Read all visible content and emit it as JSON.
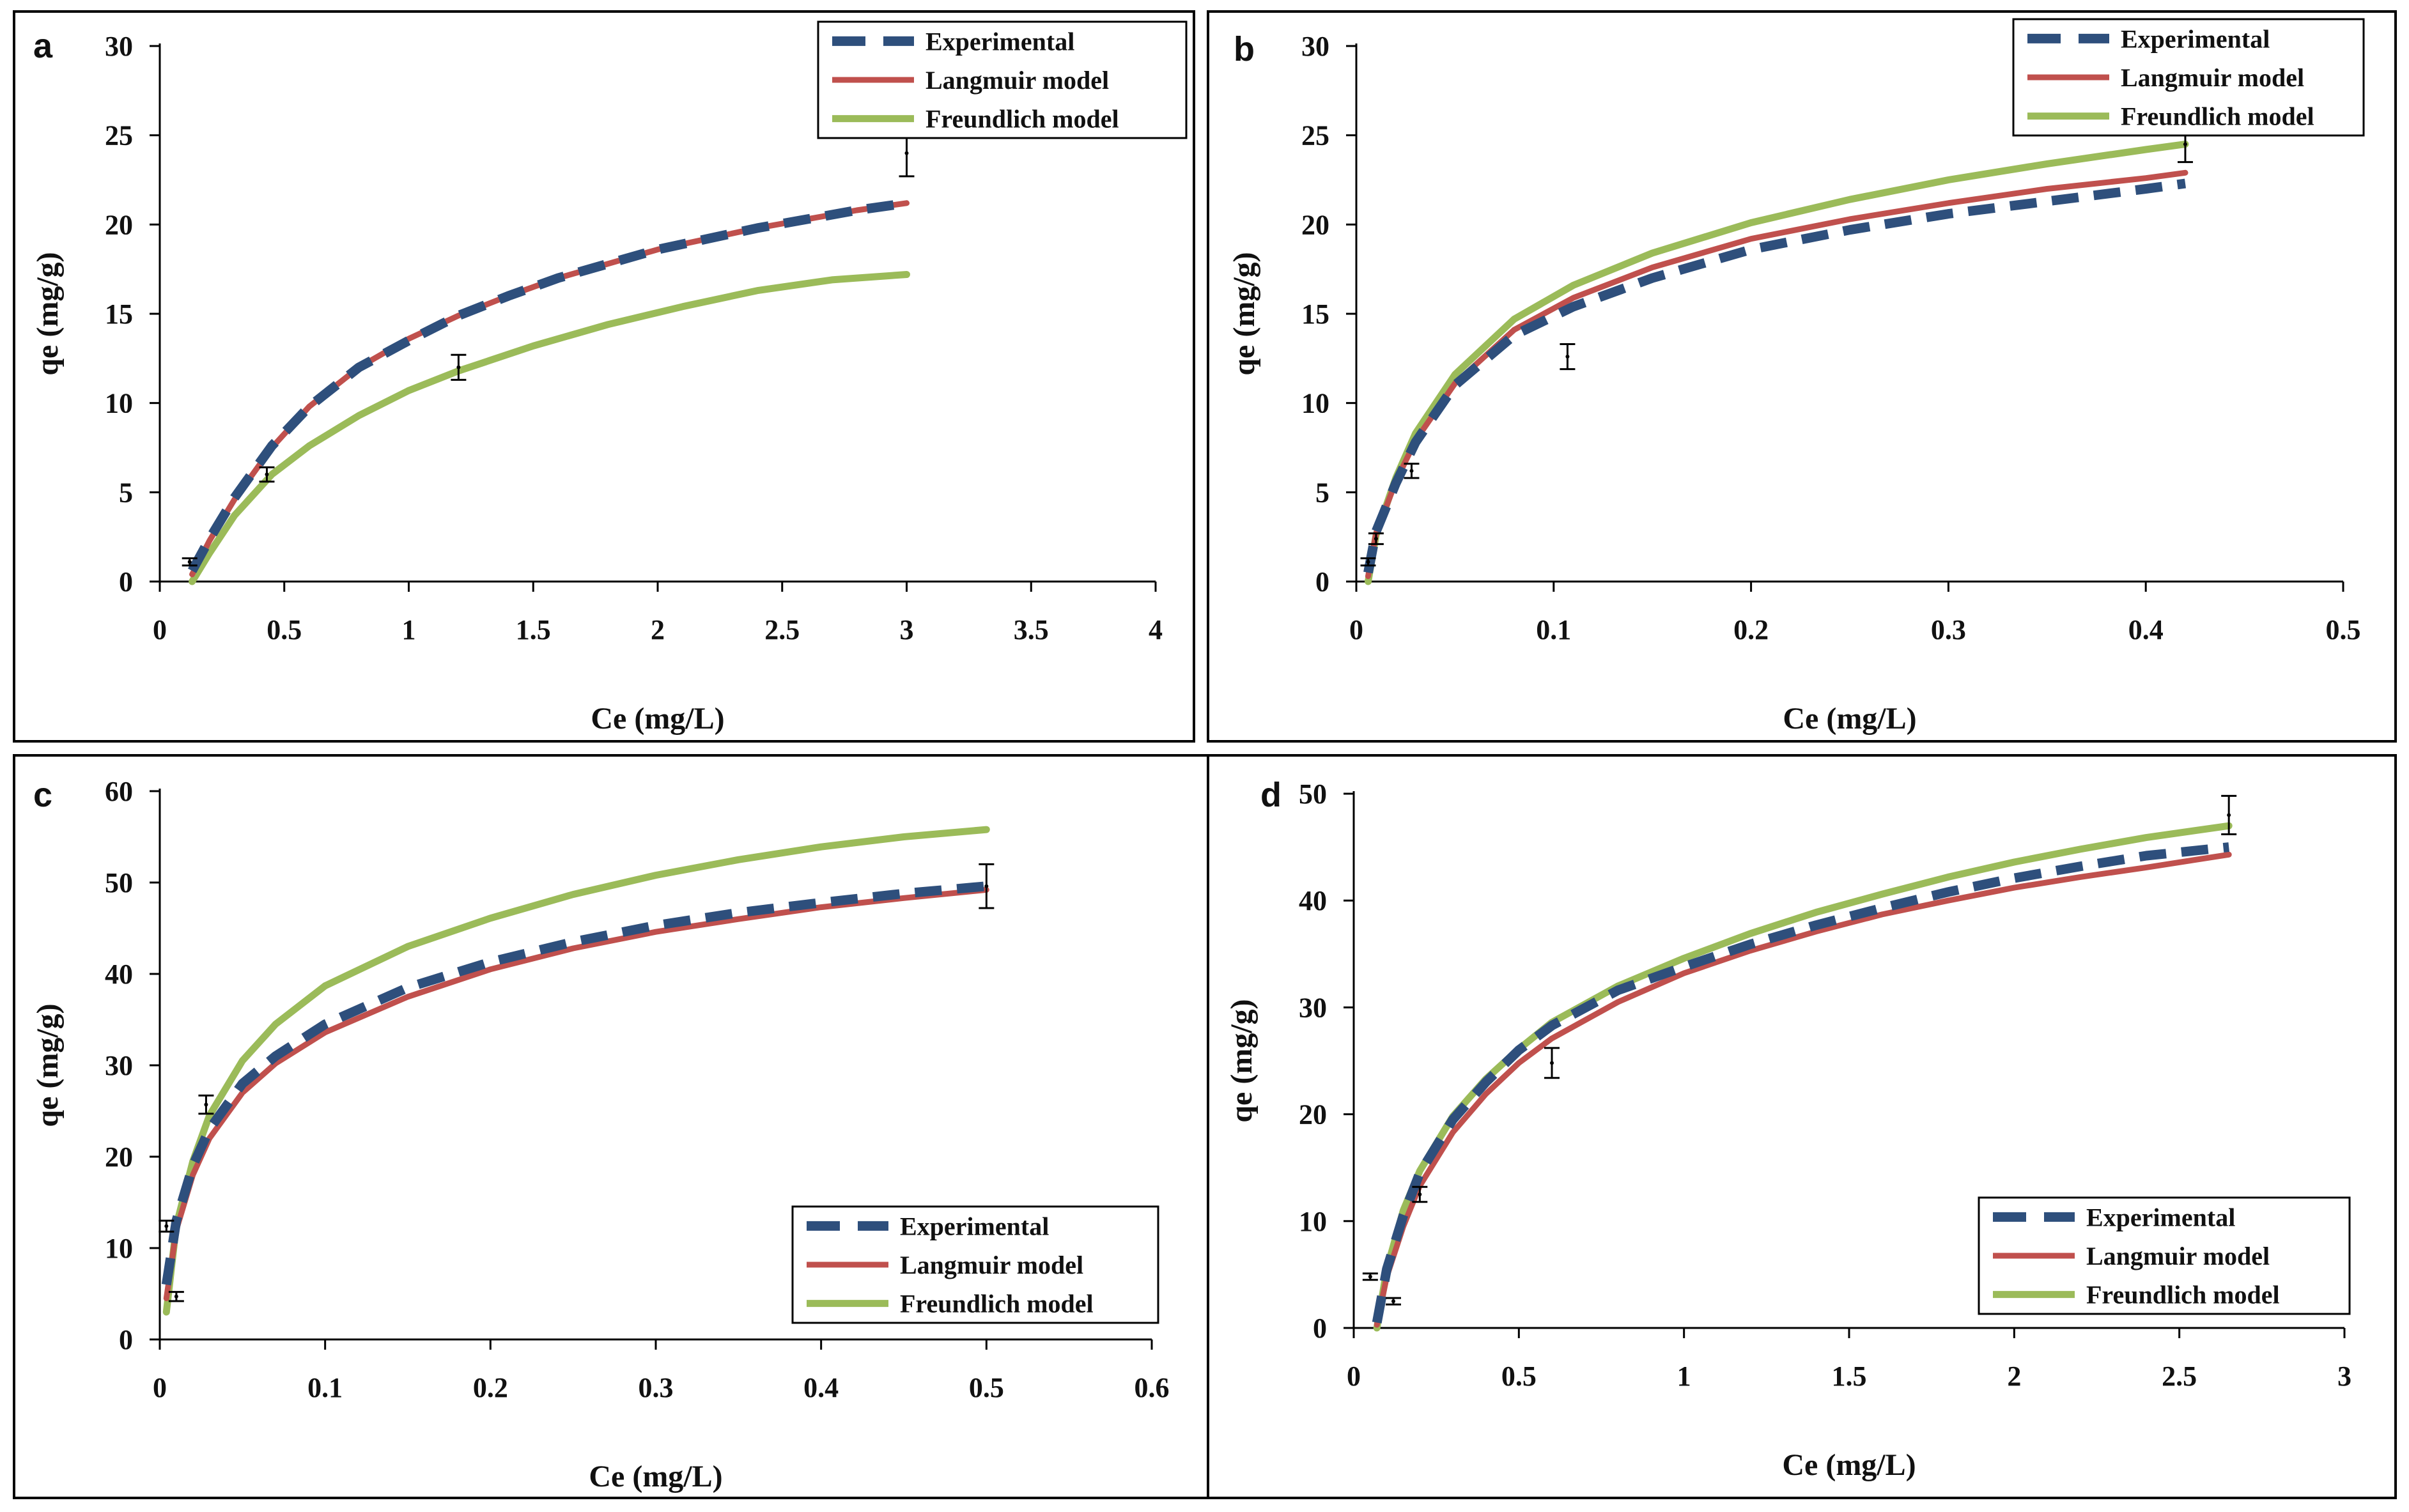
{
  "chart_data": [
    {
      "type": "line",
      "panel": "a",
      "xlabel": "Ce (mg/L)",
      "ylabel": "qe (mg/g)",
      "xlim": [
        0,
        4
      ],
      "ylim": [
        0,
        30
      ],
      "xticks": [
        "0",
        "0.5",
        "1",
        "1.5",
        "2",
        "2.5",
        "3",
        "3.5",
        "4"
      ],
      "yticks": [
        "0",
        "5",
        "10",
        "15",
        "20",
        "25",
        "30"
      ],
      "legend_position": "top-right",
      "series": [
        {
          "name": "Experimental",
          "style": "dashed",
          "x": [
            0.13,
            0.2,
            0.3,
            0.45,
            0.6,
            0.8,
            1.0,
            1.2,
            1.4,
            1.6,
            1.8,
            2.0,
            2.2,
            2.4,
            2.6,
            2.8,
            3.0
          ],
          "y": [
            0.6,
            2.4,
            4.7,
            7.6,
            9.8,
            12.0,
            13.5,
            14.9,
            16.0,
            17.0,
            17.8,
            18.6,
            19.2,
            19.8,
            20.3,
            20.8,
            21.2
          ]
        },
        {
          "name": "Langmuir model",
          "style": "solid",
          "x": [
            0.13,
            0.2,
            0.3,
            0.45,
            0.6,
            0.8,
            1.0,
            1.2,
            1.4,
            1.6,
            1.8,
            2.0,
            2.2,
            2.4,
            2.6,
            2.8,
            3.0
          ],
          "y": [
            0.4,
            2.3,
            4.6,
            7.5,
            9.8,
            12.0,
            13.6,
            14.9,
            16.0,
            17.0,
            17.8,
            18.6,
            19.2,
            19.8,
            20.3,
            20.8,
            21.2
          ]
        },
        {
          "name": "Freundlich model",
          "style": "solid",
          "x": [
            0.13,
            0.2,
            0.3,
            0.45,
            0.6,
            0.8,
            1.0,
            1.2,
            1.5,
            1.8,
            2.1,
            2.4,
            2.7,
            3.0
          ],
          "y": [
            0.0,
            1.6,
            3.7,
            6.0,
            7.6,
            9.3,
            10.7,
            11.8,
            13.2,
            14.4,
            15.4,
            16.3,
            16.9,
            17.2
          ]
        }
      ],
      "error_points": [
        {
          "x": 0.12,
          "y": 1.1,
          "err": 0.2
        },
        {
          "x": 0.43,
          "y": 6.0,
          "err": 0.4
        },
        {
          "x": 1.2,
          "y": 12.0,
          "err": 0.7
        },
        {
          "x": 3.0,
          "y": 24.0,
          "err": 1.3
        }
      ]
    },
    {
      "type": "line",
      "panel": "b",
      "xlabel": "Ce (mg/L)",
      "ylabel": "qe (mg/g)",
      "xlim": [
        0,
        0.5
      ],
      "ylim": [
        0,
        30
      ],
      "xticks": [
        "0",
        "0.1",
        "0.2",
        "0.3",
        "0.4",
        "0.5"
      ],
      "yticks": [
        "0",
        "5",
        "10",
        "15",
        "20",
        "25",
        "30"
      ],
      "legend_position": "top-right",
      "series": [
        {
          "name": "Experimental",
          "style": "dashed",
          "x": [
            0.006,
            0.01,
            0.02,
            0.03,
            0.05,
            0.08,
            0.11,
            0.15,
            0.2,
            0.25,
            0.3,
            0.35,
            0.4,
            0.42
          ],
          "y": [
            0.5,
            2.8,
            5.5,
            7.8,
            11.0,
            13.8,
            15.4,
            17.0,
            18.6,
            19.7,
            20.6,
            21.3,
            22.0,
            22.3
          ]
        },
        {
          "name": "Langmuir model",
          "style": "solid",
          "x": [
            0.006,
            0.01,
            0.02,
            0.03,
            0.05,
            0.08,
            0.11,
            0.15,
            0.2,
            0.25,
            0.3,
            0.35,
            0.4,
            0.42
          ],
          "y": [
            0.3,
            2.7,
            5.6,
            7.9,
            11.1,
            14.1,
            15.9,
            17.6,
            19.2,
            20.3,
            21.2,
            22.0,
            22.6,
            22.9
          ]
        },
        {
          "name": "Freundlich model",
          "style": "solid",
          "x": [
            0.006,
            0.01,
            0.02,
            0.03,
            0.05,
            0.08,
            0.11,
            0.15,
            0.2,
            0.25,
            0.3,
            0.35,
            0.4,
            0.42
          ],
          "y": [
            0.0,
            2.6,
            5.8,
            8.3,
            11.6,
            14.7,
            16.6,
            18.4,
            20.1,
            21.4,
            22.5,
            23.4,
            24.2,
            24.5
          ]
        }
      ],
      "error_points": [
        {
          "x": 0.006,
          "y": 1.1,
          "err": 0.2
        },
        {
          "x": 0.01,
          "y": 2.4,
          "err": 0.3
        },
        {
          "x": 0.028,
          "y": 6.2,
          "err": 0.4
        },
        {
          "x": 0.107,
          "y": 12.6,
          "err": 0.7
        },
        {
          "x": 0.42,
          "y": 24.5,
          "err": 1.0
        }
      ]
    },
    {
      "type": "line",
      "panel": "c",
      "xlabel": "Ce (mg/L)",
      "ylabel": "qe (mg/g)",
      "xlim": [
        0,
        0.6
      ],
      "ylim": [
        0,
        60
      ],
      "xticks": [
        "0",
        "0.1",
        "0.2",
        "0.3",
        "0.4",
        "0.5",
        "0.6"
      ],
      "yticks": [
        "0",
        "10",
        "20",
        "30",
        "40",
        "50",
        "60"
      ],
      "legend_position": "bottom-right",
      "series": [
        {
          "name": "Experimental",
          "style": "dashed",
          "x": [
            0.004,
            0.01,
            0.02,
            0.03,
            0.05,
            0.07,
            0.1,
            0.15,
            0.2,
            0.25,
            0.3,
            0.35,
            0.4,
            0.45,
            0.5
          ],
          "y": [
            6.0,
            13.0,
            19.0,
            23.0,
            28.0,
            31.0,
            34.5,
            38.5,
            41.3,
            43.5,
            45.3,
            46.7,
            47.8,
            48.8,
            49.6
          ]
        },
        {
          "name": "Langmuir model",
          "style": "solid",
          "x": [
            0.004,
            0.01,
            0.02,
            0.03,
            0.05,
            0.07,
            0.1,
            0.15,
            0.2,
            0.25,
            0.3,
            0.35,
            0.4,
            0.45,
            0.5
          ],
          "y": [
            4.5,
            12.0,
            18.0,
            22.0,
            27.0,
            30.2,
            33.6,
            37.5,
            40.5,
            42.8,
            44.6,
            46.0,
            47.3,
            48.3,
            49.2
          ]
        },
        {
          "name": "Freundlich model",
          "style": "solid",
          "x": [
            0.004,
            0.01,
            0.02,
            0.03,
            0.05,
            0.07,
            0.1,
            0.15,
            0.2,
            0.25,
            0.3,
            0.35,
            0.4,
            0.45,
            0.5
          ],
          "y": [
            3.0,
            12.5,
            19.5,
            24.5,
            30.5,
            34.5,
            38.7,
            43.0,
            46.1,
            48.7,
            50.8,
            52.5,
            53.9,
            55.0,
            55.8
          ]
        }
      ],
      "error_points": [
        {
          "x": 0.004,
          "y": 12.4,
          "err": 0.6
        },
        {
          "x": 0.01,
          "y": 4.7,
          "err": 0.5
        },
        {
          "x": 0.028,
          "y": 25.7,
          "err": 1.0
        },
        {
          "x": 0.5,
          "y": 49.6,
          "err": 2.4
        }
      ]
    },
    {
      "type": "line",
      "panel": "d",
      "xlabel": "Ce (mg/L)",
      "ylabel": "qe (mg/g)",
      "xlim": [
        0,
        3
      ],
      "ylim": [
        0,
        50
      ],
      "xticks": [
        "0",
        "0.5",
        "1",
        "1.5",
        "2",
        "2.5",
        "3"
      ],
      "yticks": [
        "0",
        "10",
        "20",
        "30",
        "40",
        "50"
      ],
      "legend_position": "bottom-right",
      "series": [
        {
          "name": "Experimental",
          "style": "dashed",
          "x": [
            0.07,
            0.1,
            0.15,
            0.2,
            0.3,
            0.4,
            0.5,
            0.6,
            0.8,
            1.0,
            1.2,
            1.4,
            1.6,
            1.8,
            2.0,
            2.2,
            2.4,
            2.65
          ],
          "y": [
            0.5,
            5.5,
            10.5,
            14.5,
            19.5,
            23.0,
            26.0,
            28.3,
            31.6,
            33.8,
            35.9,
            37.7,
            39.3,
            40.8,
            42.1,
            43.2,
            44.2,
            45.0
          ]
        },
        {
          "name": "Langmuir model",
          "style": "solid",
          "x": [
            0.07,
            0.1,
            0.15,
            0.2,
            0.3,
            0.4,
            0.5,
            0.6,
            0.8,
            1.0,
            1.2,
            1.4,
            1.6,
            1.8,
            2.0,
            2.2,
            2.4,
            2.65
          ],
          "y": [
            0.3,
            4.8,
            9.5,
            13.3,
            18.3,
            21.9,
            24.8,
            27.1,
            30.5,
            33.2,
            35.3,
            37.1,
            38.7,
            40.0,
            41.2,
            42.2,
            43.1,
            44.3
          ]
        },
        {
          "name": "Freundlich model",
          "style": "solid",
          "x": [
            0.07,
            0.1,
            0.15,
            0.2,
            0.3,
            0.4,
            0.5,
            0.6,
            0.8,
            1.0,
            1.2,
            1.4,
            1.6,
            1.8,
            2.0,
            2.2,
            2.4,
            2.65
          ],
          "y": [
            0.0,
            5.5,
            11.0,
            14.7,
            19.8,
            23.3,
            26.1,
            28.6,
            32.0,
            34.6,
            36.9,
            38.9,
            40.6,
            42.2,
            43.6,
            44.8,
            45.9,
            47.0
          ]
        }
      ],
      "error_points": [
        {
          "x": 0.05,
          "y": 4.8,
          "err": 0.3
        },
        {
          "x": 0.12,
          "y": 2.5,
          "err": 0.3
        },
        {
          "x": 0.2,
          "y": 12.5,
          "err": 0.7
        },
        {
          "x": 0.6,
          "y": 24.8,
          "err": 1.4
        },
        {
          "x": 2.65,
          "y": 48.0,
          "err": 1.8
        }
      ]
    }
  ],
  "colors": {
    "experimental": "#2e4f7c",
    "langmuir": "#c0504d",
    "freundlich": "#9bbb59",
    "axis": "#000000"
  }
}
